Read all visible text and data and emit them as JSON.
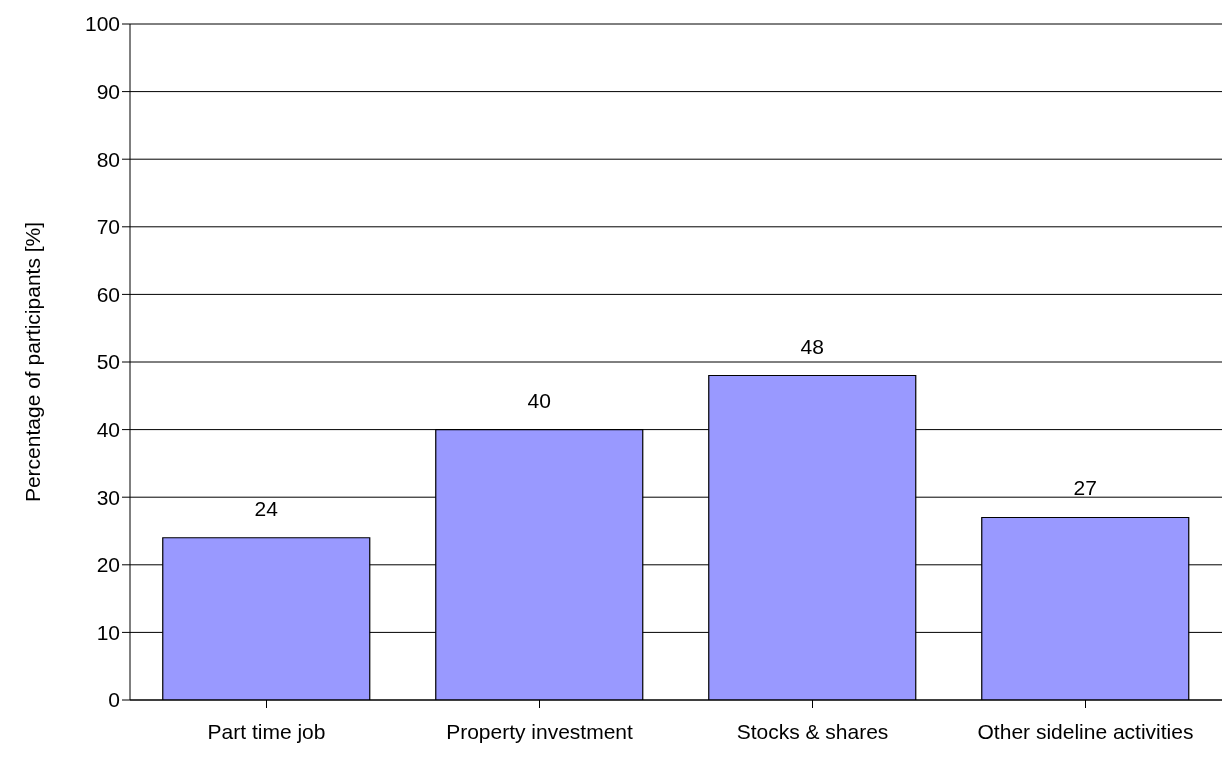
{
  "chart_data": {
    "type": "bar",
    "ylabel": "Percentage of participants [%]",
    "categories": [
      "Part time job",
      "Property investment",
      "Stocks & shares",
      "Other sideline activities"
    ],
    "values": [
      24,
      40,
      48,
      27
    ],
    "color": "#9999ff",
    "ylim": [
      0,
      100
    ],
    "yticks": [
      0,
      10,
      20,
      30,
      40,
      50,
      60,
      70,
      80,
      90,
      100
    ],
    "grid": "y",
    "data_labels": true
  }
}
